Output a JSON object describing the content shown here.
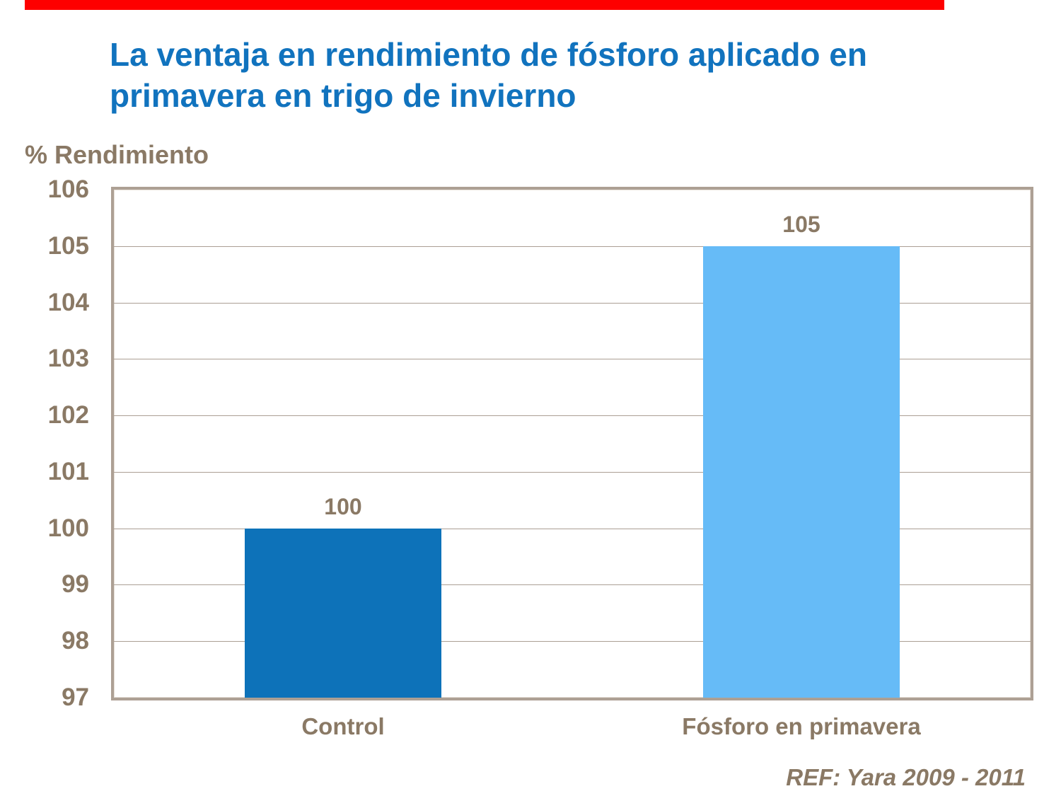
{
  "slide": {
    "accent_strip_color": "#fe0000",
    "title_line1": "La ventaja en rendimiento de fósforo aplicado en",
    "title_line2": "primavera en trigo de invierno",
    "title_color": "#1173be",
    "reference": "REF: Yara 2009 - 2011"
  },
  "chart_data": {
    "type": "bar",
    "title": "La ventaja en rendimiento de fósforo aplicado en primavera en trigo de invierno",
    "ylabel": "% Rendimiento",
    "xlabel": "",
    "categories": [
      "Control",
      "Fósforo en primavera"
    ],
    "values": [
      100,
      105
    ],
    "data_labels": [
      "100",
      "105"
    ],
    "bar_colors": [
      "#0d72b9",
      "#66bbf7"
    ],
    "ylim": [
      97,
      106
    ],
    "yticks": [
      97,
      98,
      99,
      100,
      101,
      102,
      103,
      104,
      105,
      106
    ],
    "grid": "horizontal",
    "legend": "none",
    "axis_text_color": "#8a7965",
    "gridline_color": "#ab9f94",
    "plot_border_color": "#ada094",
    "annotation": "REF: Yara 2009 - 2011"
  }
}
